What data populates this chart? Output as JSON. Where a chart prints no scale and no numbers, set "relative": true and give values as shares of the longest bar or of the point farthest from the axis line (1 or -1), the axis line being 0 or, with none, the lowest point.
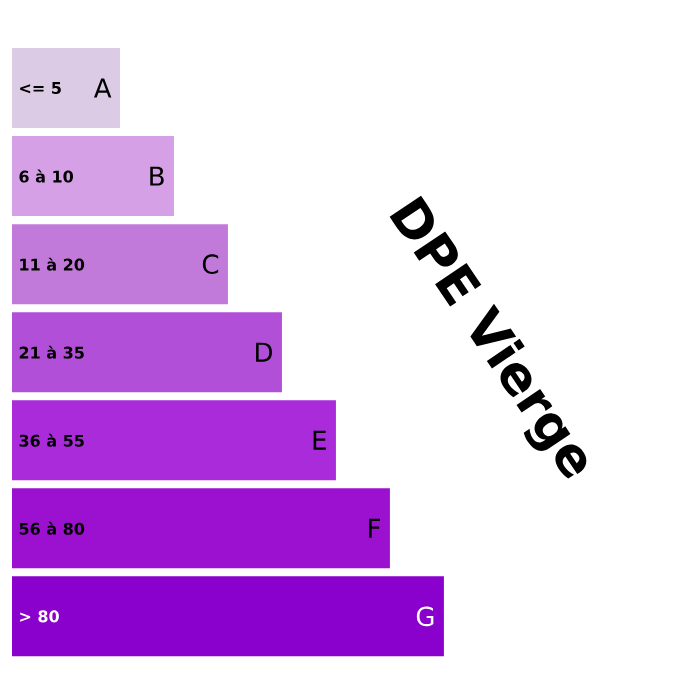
{
  "chart_data": {
    "type": "bar",
    "orientation": "horizontal",
    "relative": true,
    "title": "DPE Vierge",
    "categories": [
      "<= 5",
      "6 à 10",
      "11 à 20",
      "21 à 35",
      "36 à 55",
      "56 à 80",
      "> 80"
    ],
    "values": [
      0.25,
      0.375,
      0.5,
      0.625,
      0.75,
      0.875,
      1
    ],
    "colors": [
      "#dccbe4",
      "#d5a0e6",
      "#c27ada",
      "#b24fd8",
      "#a92bd9",
      "#9c10cf",
      "#8a00cc"
    ],
    "annotations": [
      {
        "text": "A",
        "x": 0.25,
        "y": "<= 5"
      },
      {
        "text": "B",
        "x": 0.375,
        "y": "6 à 10"
      },
      {
        "text": "C",
        "x": 0.5,
        "y": "11 à 20"
      },
      {
        "text": "D",
        "x": 0.625,
        "y": "21 à 35"
      },
      {
        "text": "E",
        "x": 0.75,
        "y": "36 à 55"
      },
      {
        "text": "F",
        "x": 0.875,
        "y": "56 à 80"
      },
      {
        "text": "G",
        "x": 1,
        "y": "> 80"
      }
    ]
  }
}
